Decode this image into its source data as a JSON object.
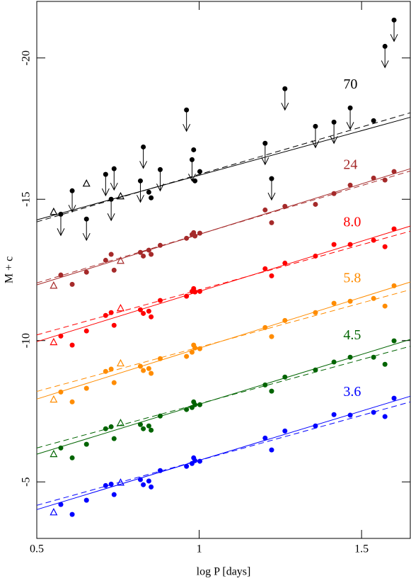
{
  "chart_data": {
    "type": "scatter",
    "x_label": "log P [days]",
    "y_label": "M + c",
    "xlim": [
      0.5,
      1.65
    ],
    "xticks": [
      0.5,
      1,
      1.5
    ],
    "ylim": [
      -3,
      -22
    ],
    "yticks": [
      -5,
      -10,
      -15,
      -20
    ],
    "fit_x": [
      0.5,
      1.65
    ],
    "series": [
      {
        "name": "3.6",
        "color": "#0000ff",
        "x": [
          0.574,
          0.609,
          0.653,
          0.712,
          0.729,
          0.738,
          0.819,
          0.828,
          0.845,
          0.852,
          0.88,
          0.961,
          0.978,
          0.983,
          0.987,
          1.002,
          1.203,
          1.223,
          1.264,
          1.358,
          1.415,
          1.465,
          1.537,
          1.572,
          1.6,
          0.552,
          0.758
        ],
        "values": [
          -4.2,
          -3.85,
          -4.35,
          -4.87,
          -4.92,
          -4.55,
          -5.08,
          -4.9,
          -5.03,
          -4.82,
          -5.4,
          -5.55,
          -5.65,
          -5.85,
          -5.75,
          -5.73,
          -6.55,
          -6.13,
          -6.8,
          -6.98,
          -7.38,
          -7.36,
          -7.46,
          -7.31,
          -7.96,
          -3.92,
          -4.97
        ],
        "markers": [
          "circle",
          "circle",
          "circle",
          "circle",
          "circle",
          "circle",
          "circle",
          "circle",
          "circle",
          "circle",
          "circle",
          "circle",
          "circle",
          "circle",
          "circle",
          "circle",
          "circle",
          "circle",
          "circle",
          "circle",
          "circle",
          "circle",
          "circle",
          "circle",
          "circle",
          "triangle",
          "triangle"
        ],
        "fit": [
          -4.02,
          -8.03
        ],
        "fit_dashed": [
          -4.17,
          -7.83
        ]
      },
      {
        "name": "4.5",
        "color": "#006400",
        "x": [
          0.574,
          0.609,
          0.653,
          0.712,
          0.729,
          0.738,
          0.819,
          0.828,
          0.845,
          0.852,
          0.88,
          0.961,
          0.978,
          0.983,
          0.987,
          1.002,
          1.203,
          1.223,
          1.264,
          1.358,
          1.415,
          1.465,
          1.537,
          1.572,
          1.6,
          0.552,
          0.758
        ],
        "values": [
          -6.2,
          -5.85,
          -6.33,
          -6.88,
          -6.95,
          -6.53,
          -7.03,
          -6.88,
          -6.98,
          -6.83,
          -7.33,
          -7.56,
          -7.63,
          -7.83,
          -7.73,
          -7.73,
          -8.43,
          -8.21,
          -8.71,
          -8.96,
          -9.24,
          -9.41,
          -9.41,
          -9.16,
          -9.99,
          -5.98,
          -7.08
        ],
        "markers": [
          "circle",
          "circle",
          "circle",
          "circle",
          "circle",
          "circle",
          "circle",
          "circle",
          "circle",
          "circle",
          "circle",
          "circle",
          "circle",
          "circle",
          "circle",
          "circle",
          "circle",
          "circle",
          "circle",
          "circle",
          "circle",
          "circle",
          "circle",
          "circle",
          "circle",
          "triangle",
          "triangle"
        ],
        "fit": [
          -5.98,
          -10.04
        ],
        "fit_dashed": [
          -6.2,
          -9.8
        ]
      },
      {
        "name": "5.8",
        "color": "#ff8c00",
        "x": [
          0.574,
          0.609,
          0.653,
          0.712,
          0.729,
          0.738,
          0.819,
          0.828,
          0.845,
          0.852,
          0.88,
          0.961,
          0.978,
          0.983,
          0.987,
          1.002,
          1.203,
          1.223,
          1.264,
          1.358,
          1.415,
          1.465,
          1.537,
          1.572,
          1.6,
          0.552,
          0.758
        ],
        "values": [
          -8.18,
          -7.83,
          -8.31,
          -8.91,
          -8.99,
          -8.51,
          -9.09,
          -8.94,
          -9.01,
          -8.84,
          -9.36,
          -9.44,
          -9.59,
          -9.84,
          -9.74,
          -9.71,
          -10.46,
          -10.14,
          -10.71,
          -10.99,
          -11.32,
          -11.39,
          -11.49,
          -11.22,
          -11.94,
          -7.91,
          -9.19
        ],
        "markers": [
          "circle",
          "circle",
          "circle",
          "circle",
          "circle",
          "circle",
          "circle",
          "circle",
          "circle",
          "circle",
          "circle",
          "circle",
          "circle",
          "circle",
          "circle",
          "circle",
          "circle",
          "circle",
          "circle",
          "circle",
          "circle",
          "circle",
          "circle",
          "circle",
          "circle",
          "triangle",
          "triangle"
        ],
        "fit": [
          -7.93,
          -12.07
        ],
        "fit_dashed": [
          -8.2,
          -11.8
        ]
      },
      {
        "name": "8.0",
        "color": "#ff0000",
        "x": [
          0.574,
          0.609,
          0.653,
          0.712,
          0.729,
          0.738,
          0.819,
          0.828,
          0.845,
          0.852,
          0.88,
          0.961,
          0.978,
          0.983,
          0.987,
          1.002,
          1.203,
          1.223,
          1.264,
          1.358,
          1.415,
          1.465,
          1.537,
          1.572,
          1.6,
          0.552,
          0.758
        ],
        "values": [
          -10.16,
          -9.84,
          -10.34,
          -10.89,
          -10.99,
          -10.54,
          -11.09,
          -10.96,
          -11.04,
          -10.84,
          -11.42,
          -11.57,
          -11.74,
          -11.84,
          -11.72,
          -11.74,
          -12.54,
          -12.29,
          -12.74,
          -12.99,
          -13.4,
          -13.4,
          -13.55,
          -13.32,
          -13.95,
          -9.94,
          -11.14
        ],
        "markers": [
          "circle",
          "circle",
          "circle",
          "circle",
          "circle",
          "circle",
          "circle",
          "circle",
          "circle",
          "circle",
          "circle",
          "circle",
          "circle",
          "circle",
          "circle",
          "circle",
          "circle",
          "circle",
          "circle",
          "circle",
          "circle",
          "circle",
          "circle",
          "circle",
          "circle",
          "triangle",
          "triangle"
        ],
        "fit": [
          -9.96,
          -14.05
        ],
        "fit_dashed": [
          -10.2,
          -13.87
        ]
      },
      {
        "name": "24",
        "color": "#a52a2a",
        "x": [
          0.574,
          0.609,
          0.653,
          0.712,
          0.729,
          0.738,
          0.819,
          0.828,
          0.845,
          0.852,
          0.88,
          0.961,
          0.978,
          0.983,
          0.987,
          1.002,
          1.203,
          1.223,
          1.264,
          1.358,
          1.415,
          1.465,
          1.537,
          1.572,
          1.6,
          0.552,
          0.758
        ],
        "values": [
          -12.32,
          -11.99,
          -12.42,
          -12.84,
          -13.05,
          -12.49,
          -13.12,
          -12.99,
          -13.2,
          -13.05,
          -13.37,
          -13.62,
          -13.75,
          -13.82,
          -13.7,
          -13.8,
          -14.62,
          -14.17,
          -14.75,
          -14.82,
          -15.2,
          -15.5,
          -15.75,
          -15.68,
          -15.98,
          -11.94,
          -12.82
        ],
        "markers": [
          "circle",
          "circle",
          "circle",
          "circle",
          "circle",
          "circle",
          "circle",
          "circle",
          "circle",
          "circle",
          "circle",
          "circle",
          "circle",
          "circle",
          "circle",
          "circle",
          "circle",
          "circle",
          "circle",
          "circle",
          "circle",
          "circle",
          "circle",
          "circle",
          "circle",
          "triangle",
          "triangle"
        ],
        "fit": [
          -11.97,
          -16.08
        ],
        "fit_dashed": [
          -12.04,
          -16.0
        ]
      },
      {
        "name": "70",
        "color": "#000000",
        "x": [
          0.574,
          0.609,
          0.653,
          0.712,
          0.729,
          0.738,
          0.819,
          0.828,
          0.845,
          0.852,
          0.88,
          0.961,
          0.978,
          0.983,
          0.987,
          1.002,
          1.203,
          1.223,
          1.264,
          1.358,
          1.415,
          1.465,
          1.537,
          1.572,
          1.6,
          0.552,
          0.653,
          0.758
        ],
        "values": [
          -14.47,
          -15.3,
          -14.3,
          -15.88,
          -15.0,
          -16.08,
          -15.65,
          -16.85,
          -15.25,
          -15.05,
          -16.05,
          -18.16,
          -16.4,
          -16.75,
          -15.65,
          -15.98,
          -16.98,
          -15.73,
          -18.91,
          -17.58,
          -17.73,
          -18.23,
          -17.78,
          -20.41,
          -21.34,
          -14.55,
          -15.55,
          -15.1
        ],
        "markers": [
          "circle",
          "circle",
          "circle",
          "circle",
          "circle",
          "circle",
          "circle",
          "circle",
          "circle",
          "circle",
          "circle",
          "circle",
          "circle",
          "circle",
          "circle",
          "circle",
          "circle",
          "circle",
          "circle",
          "circle",
          "circle",
          "circle",
          "circle",
          "circle",
          "circle",
          "triangle",
          "triangle",
          "triangle"
        ],
        "upper_limit": [
          true,
          true,
          true,
          true,
          true,
          true,
          true,
          true,
          false,
          false,
          true,
          true,
          true,
          false,
          false,
          false,
          true,
          true,
          true,
          true,
          true,
          true,
          false,
          true,
          true,
          false,
          false,
          false
        ],
        "fit": [
          -14.27,
          -17.9
        ],
        "fit_dashed": [
          -14.2,
          -18.06
        ]
      }
    ]
  }
}
